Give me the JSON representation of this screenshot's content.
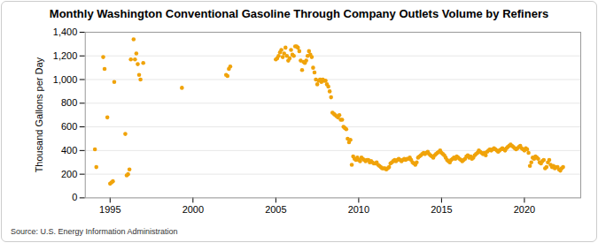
{
  "chart_data": {
    "type": "scatter",
    "title": "Monthly Washington Conventional Gasoline Through Company Outlets Volume by Refiners",
    "y_label": "Thousand Gallons per Day",
    "caption": "Source: U.S. Energy Information Administration",
    "color": "#f0a30a",
    "marker": "circle",
    "grid": true,
    "xlim": [
      1993.5,
      2023.4
    ],
    "xticks": [
      1995,
      2000,
      2005,
      2010,
      2015,
      2020
    ],
    "ylim": [
      0,
      1400
    ],
    "yticks": [
      0,
      200,
      400,
      600,
      800,
      {
        "value": 1000,
        "label": "1,000"
      },
      {
        "value": 1200,
        "label": "1,200"
      },
      {
        "value": 1400,
        "label": "1,400"
      }
    ],
    "x": [
      1994.083,
      1994.167,
      1994.583,
      1994.667,
      1994.833,
      1995.0,
      1995.083,
      1995.167,
      1995.25,
      1995.917,
      1996.0,
      1996.083,
      1996.167,
      1996.25,
      1996.417,
      1996.5,
      1996.583,
      1996.667,
      1996.75,
      1996.833,
      1997.0,
      1999.333,
      2002.0,
      2002.083,
      2002.167,
      2002.25,
      2005.0,
      2005.083,
      2005.167,
      2005.25,
      2005.333,
      2005.417,
      2005.5,
      2005.583,
      2005.667,
      2005.75,
      2005.833,
      2005.917,
      2006.0,
      2006.083,
      2006.167,
      2006.25,
      2006.333,
      2006.417,
      2006.5,
      2006.583,
      2006.667,
      2006.75,
      2006.833,
      2006.917,
      2007.0,
      2007.083,
      2007.167,
      2007.25,
      2007.333,
      2007.417,
      2007.5,
      2007.583,
      2007.667,
      2007.75,
      2007.833,
      2007.917,
      2008.0,
      2008.083,
      2008.167,
      2008.25,
      2008.333,
      2008.417,
      2008.5,
      2008.583,
      2008.667,
      2008.75,
      2008.833,
      2008.917,
      2009.0,
      2009.083,
      2009.167,
      2009.25,
      2009.333,
      2009.417,
      2009.5,
      2009.583,
      2009.667,
      2009.75,
      2009.833,
      2009.917,
      2010.0,
      2010.083,
      2010.167,
      2010.25,
      2010.333,
      2010.417,
      2010.5,
      2010.583,
      2010.667,
      2010.75,
      2010.833,
      2010.917,
      2011.0,
      2011.083,
      2011.167,
      2011.25,
      2011.333,
      2011.417,
      2011.5,
      2011.583,
      2011.667,
      2011.75,
      2011.833,
      2011.917,
      2012.0,
      2012.083,
      2012.167,
      2012.25,
      2012.333,
      2012.417,
      2012.5,
      2012.583,
      2012.667,
      2012.75,
      2012.833,
      2012.917,
      2013.0,
      2013.083,
      2013.167,
      2013.25,
      2013.333,
      2013.417,
      2013.5,
      2013.583,
      2013.667,
      2013.75,
      2013.833,
      2013.917,
      2014.0,
      2014.083,
      2014.167,
      2014.25,
      2014.333,
      2014.417,
      2014.5,
      2014.583,
      2014.667,
      2014.75,
      2014.833,
      2014.917,
      2015.0,
      2015.083,
      2015.167,
      2015.25,
      2015.333,
      2015.417,
      2015.5,
      2015.583,
      2015.667,
      2015.75,
      2015.833,
      2015.917,
      2016.0,
      2016.083,
      2016.167,
      2016.25,
      2016.333,
      2016.417,
      2016.5,
      2016.583,
      2016.667,
      2016.75,
      2016.833,
      2016.917,
      2017.0,
      2017.083,
      2017.167,
      2017.25,
      2017.333,
      2017.417,
      2017.5,
      2017.583,
      2017.667,
      2017.75,
      2017.833,
      2017.917,
      2018.0,
      2018.083,
      2018.167,
      2018.25,
      2018.333,
      2018.417,
      2018.5,
      2018.583,
      2018.667,
      2018.75,
      2018.833,
      2018.917,
      2019.0,
      2019.083,
      2019.167,
      2019.25,
      2019.333,
      2019.417,
      2019.5,
      2019.583,
      2019.667,
      2019.75,
      2019.833,
      2019.917,
      2020.0,
      2020.083,
      2020.167,
      2020.25,
      2020.333,
      2020.417,
      2020.5,
      2020.583,
      2020.667,
      2020.75,
      2020.833,
      2020.917,
      2021.0,
      2021.083,
      2021.167,
      2021.25,
      2021.333,
      2021.417,
      2021.5,
      2021.583,
      2021.667,
      2021.75,
      2021.833,
      2021.917,
      2022.0,
      2022.083,
      2022.167,
      2022.25,
      2022.333
    ],
    "values": [
      410,
      260,
      1190,
      1090,
      680,
      120,
      130,
      140,
      980,
      540,
      190,
      200,
      240,
      1170,
      1340,
      1170,
      1220,
      1130,
      1040,
      1000,
      1140,
      930,
      1040,
      1030,
      1090,
      1110,
      1170,
      1180,
      1200,
      1230,
      1250,
      1190,
      1220,
      1270,
      1200,
      1160,
      1180,
      1250,
      1210,
      1200,
      1280,
      1280,
      1270,
      1240,
      1160,
      1080,
      1150,
      1140,
      1160,
      1200,
      1240,
      1210,
      1190,
      1100,
      1060,
      1000,
      960,
      990,
      1000,
      980,
      1000,
      990,
      990,
      960,
      940,
      900,
      850,
      720,
      710,
      700,
      690,
      680,
      700,
      660,
      660,
      600,
      590,
      580,
      500,
      470,
      490,
      280,
      350,
      330,
      320,
      340,
      320,
      310,
      340,
      330,
      320,
      310,
      320,
      320,
      300,
      310,
      300,
      290,
      290,
      300,
      280,
      270,
      260,
      250,
      250,
      250,
      240,
      250,
      260,
      290,
      300,
      310,
      320,
      310,
      320,
      330,
      320,
      310,
      320,
      330,
      320,
      330,
      330,
      340,
      320,
      300,
      290,
      280,
      300,
      340,
      350,
      360,
      370,
      380,
      370,
      380,
      390,
      370,
      360,
      350,
      340,
      360,
      370,
      380,
      390,
      400,
      380,
      370,
      360,
      340,
      320,
      310,
      300,
      320,
      330,
      340,
      330,
      350,
      340,
      330,
      320,
      310,
      320,
      330,
      350,
      360,
      340,
      350,
      330,
      340,
      360,
      370,
      380,
      400,
      390,
      380,
      370,
      380,
      360,
      390,
      400,
      410,
      400,
      410,
      420,
      410,
      400,
      390,
      400,
      410,
      420,
      410,
      400,
      420,
      430,
      440,
      450,
      440,
      430,
      420,
      410,
      420,
      430,
      440,
      420,
      410,
      400,
      420,
      410,
      380,
      270,
      300,
      340,
      330,
      350,
      340,
      330,
      300,
      290,
      310,
      320,
      250,
      260,
      300,
      320,
      280,
      260,
      270,
      250,
      260,
      260,
      240,
      230,
      250,
      260
    ]
  }
}
